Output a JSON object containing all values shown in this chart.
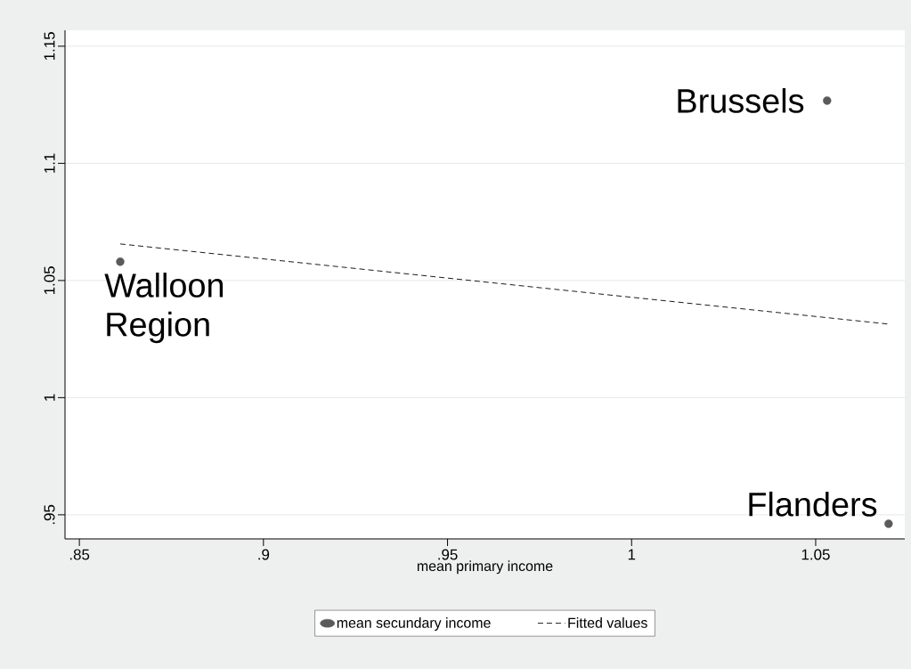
{
  "chart_data": {
    "type": "scatter",
    "xlabel": "mean primary income",
    "xlim": [
      0.8461,
      1.0742
    ],
    "ylim": [
      0.9397,
      1.1568
    ],
    "xticks": [
      {
        "value": 0.85,
        "label": ".85"
      },
      {
        "value": 0.9,
        "label": ".9"
      },
      {
        "value": 0.95,
        "label": ".95"
      },
      1,
      1.05
    ],
    "yticks": [
      {
        "value": 0.95,
        "label": ".95"
      },
      1,
      1.05,
      1.1,
      1.15
    ],
    "grid": "y",
    "legend": "bottom",
    "marker": "circle",
    "series": [
      {
        "name": "mean secundary income",
        "color": "#5a5a5a",
        "x": [
          0.8611,
          1.0531,
          1.0698
        ],
        "values": [
          1.058,
          1.1268,
          0.9462
        ]
      },
      {
        "name": "Fitted values",
        "color": "#1a1a1a",
        "type": "line",
        "marker": "none",
        "line_style": "dashed",
        "x": [
          0.8611,
          1.0698
        ],
        "values": [
          1.0656,
          1.0314
        ]
      }
    ],
    "annotations": [
      {
        "text": "Walloon Region",
        "x": 0.8611,
        "y": 1.058
      },
      {
        "text": "Brussels",
        "x": 1.0531,
        "y": 1.1268
      },
      {
        "text": "Flanders",
        "x": 1.0698,
        "y": 0.9462
      }
    ]
  }
}
